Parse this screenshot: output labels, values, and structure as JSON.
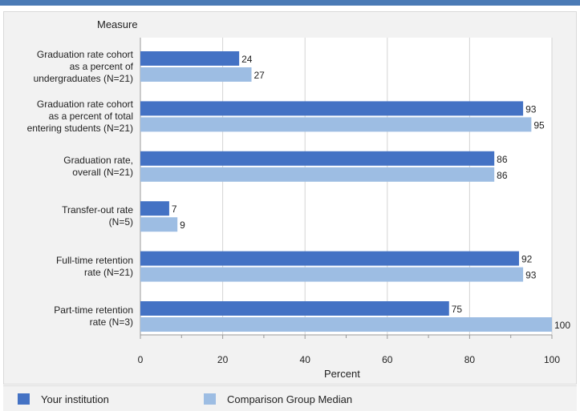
{
  "chart_data": {
    "type": "bar",
    "orientation": "horizontal",
    "title": "",
    "ylabel": "Measure",
    "xlabel": "Percent",
    "xlim": [
      0,
      100
    ],
    "x_ticks": [
      "0",
      "20",
      "40",
      "60",
      "80",
      "100"
    ],
    "grid": true,
    "legend_position": "bottom",
    "categories": [
      "Graduation rate cohort\nas a percent of\nundergraduates (N=21)",
      "Graduation rate cohort\nas a percent of total\nentering students (N=21)",
      "Graduation rate,\noverall (N=21)",
      "Transfer-out rate\n(N=5)",
      "Full-time retention\nrate (N=21)",
      "Part-time retention\nrate (N=3)"
    ],
    "series": [
      {
        "name": "Your institution",
        "color": "#4472c4",
        "values": [
          24,
          93,
          86,
          7,
          92,
          75
        ]
      },
      {
        "name": "Comparison Group Median",
        "color": "#9dbde3",
        "values": [
          27,
          95,
          86,
          9,
          93,
          100
        ]
      }
    ]
  }
}
